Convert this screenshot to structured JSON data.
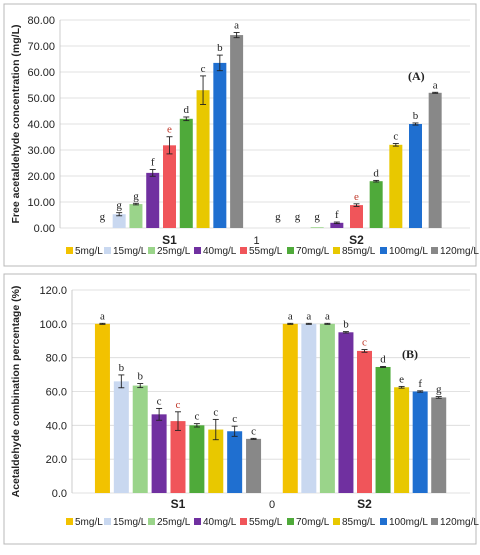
{
  "colors": [
    "#f2c200",
    "#c9d8f0",
    "#9ad48a",
    "#7030a0",
    "#f0555a",
    "#4faa3a",
    "#e8c800",
    "#1f6fd0",
    "#888888"
  ],
  "chart_data": [
    {
      "type": "bar",
      "panel_tag": "(A)",
      "ylabel": "Free acetaldehyde concentration (mg/L)",
      "ylim": [
        0,
        80
      ],
      "yticks": [
        "0.00",
        "10.00",
        "20.00",
        "30.00",
        "40.00",
        "50.00",
        "60.00",
        "70.00",
        "80.00"
      ],
      "categories": [
        "S1",
        "S2"
      ],
      "center_label": "1",
      "legend_position": "bottom",
      "grid": true,
      "series": [
        {
          "name": "5mg/L",
          "values": [
            0,
            0
          ],
          "errors": [
            0,
            0
          ],
          "letters": [
            "g",
            "g"
          ]
        },
        {
          "name": "15mg/L",
          "values": [
            5.3,
            0
          ],
          "errors": [
            0.6,
            0
          ],
          "letters": [
            "g",
            "g"
          ]
        },
        {
          "name": "25mg/L",
          "values": [
            9.2,
            0.3
          ],
          "errors": [
            0.3,
            0
          ],
          "letters": [
            "g",
            "g"
          ]
        },
        {
          "name": "40mg/L",
          "values": [
            21.2,
            2
          ],
          "errors": [
            1.3,
            0.3
          ],
          "letters": [
            "f",
            "f"
          ]
        },
        {
          "name": "55mg/L",
          "values": [
            31.8,
            8.8
          ],
          "errors": [
            3.3,
            0.5
          ],
          "letters": [
            "e",
            "e"
          ]
        },
        {
          "name": "70mg/L",
          "values": [
            42,
            18
          ],
          "errors": [
            0.7,
            0.3
          ],
          "letters": [
            "d",
            "d"
          ]
        },
        {
          "name": "85mg/L",
          "values": [
            53,
            32
          ],
          "errors": [
            5.5,
            0.5
          ],
          "letters": [
            "c",
            "c"
          ]
        },
        {
          "name": "100mg/L",
          "values": [
            63.5,
            40
          ],
          "errors": [
            3,
            0.4
          ],
          "letters": [
            "b",
            "b"
          ]
        },
        {
          "name": "120mg/L",
          "values": [
            74.2,
            52
          ],
          "errors": [
            1,
            0.2
          ],
          "letters": [
            "a",
            "a"
          ]
        }
      ]
    },
    {
      "type": "bar",
      "panel_tag": "(B)",
      "ylabel": "Acetaldehyde combination percentage (%)",
      "ylim": [
        0,
        120
      ],
      "yticks": [
        "0.0",
        "20.0",
        "40.0",
        "60.0",
        "80.0",
        "100.0",
        "120.0"
      ],
      "categories": [
        "S1",
        "S2"
      ],
      "center_label": "0",
      "legend_position": "bottom",
      "grid": true,
      "series": [
        {
          "name": "5mg/L",
          "values": [
            100,
            100
          ],
          "errors": [
            0.3,
            0.3
          ],
          "letters": [
            "a",
            "a"
          ]
        },
        {
          "name": "15mg/L",
          "values": [
            66,
            100
          ],
          "errors": [
            3.8,
            0.3
          ],
          "letters": [
            "b",
            "a"
          ]
        },
        {
          "name": "25mg/L",
          "values": [
            63.5,
            100
          ],
          "errors": [
            1.2,
            0.3
          ],
          "letters": [
            "b",
            "a"
          ]
        },
        {
          "name": "40mg/L",
          "values": [
            46.5,
            95
          ],
          "errors": [
            3.5,
            0.4
          ],
          "letters": [
            "c",
            "b"
          ]
        },
        {
          "name": "55mg/L",
          "values": [
            42.5,
            84
          ],
          "errors": [
            5.5,
            0.8
          ],
          "letters": [
            "c",
            "c"
          ]
        },
        {
          "name": "70mg/L",
          "values": [
            40,
            74.5
          ],
          "errors": [
            1,
            0.3
          ],
          "letters": [
            "c",
            "d"
          ]
        },
        {
          "name": "85mg/L",
          "values": [
            37.5,
            62.5
          ],
          "errors": [
            6,
            0.5
          ],
          "letters": [
            "c",
            "e"
          ]
        },
        {
          "name": "100mg/L",
          "values": [
            36.5,
            60
          ],
          "errors": [
            3,
            0.4
          ],
          "letters": [
            "c",
            "f"
          ]
        },
        {
          "name": "120mg/L",
          "values": [
            32,
            56.5
          ],
          "errors": [
            0.3,
            0.5
          ],
          "letters": [
            "c",
            "g"
          ]
        }
      ]
    }
  ]
}
